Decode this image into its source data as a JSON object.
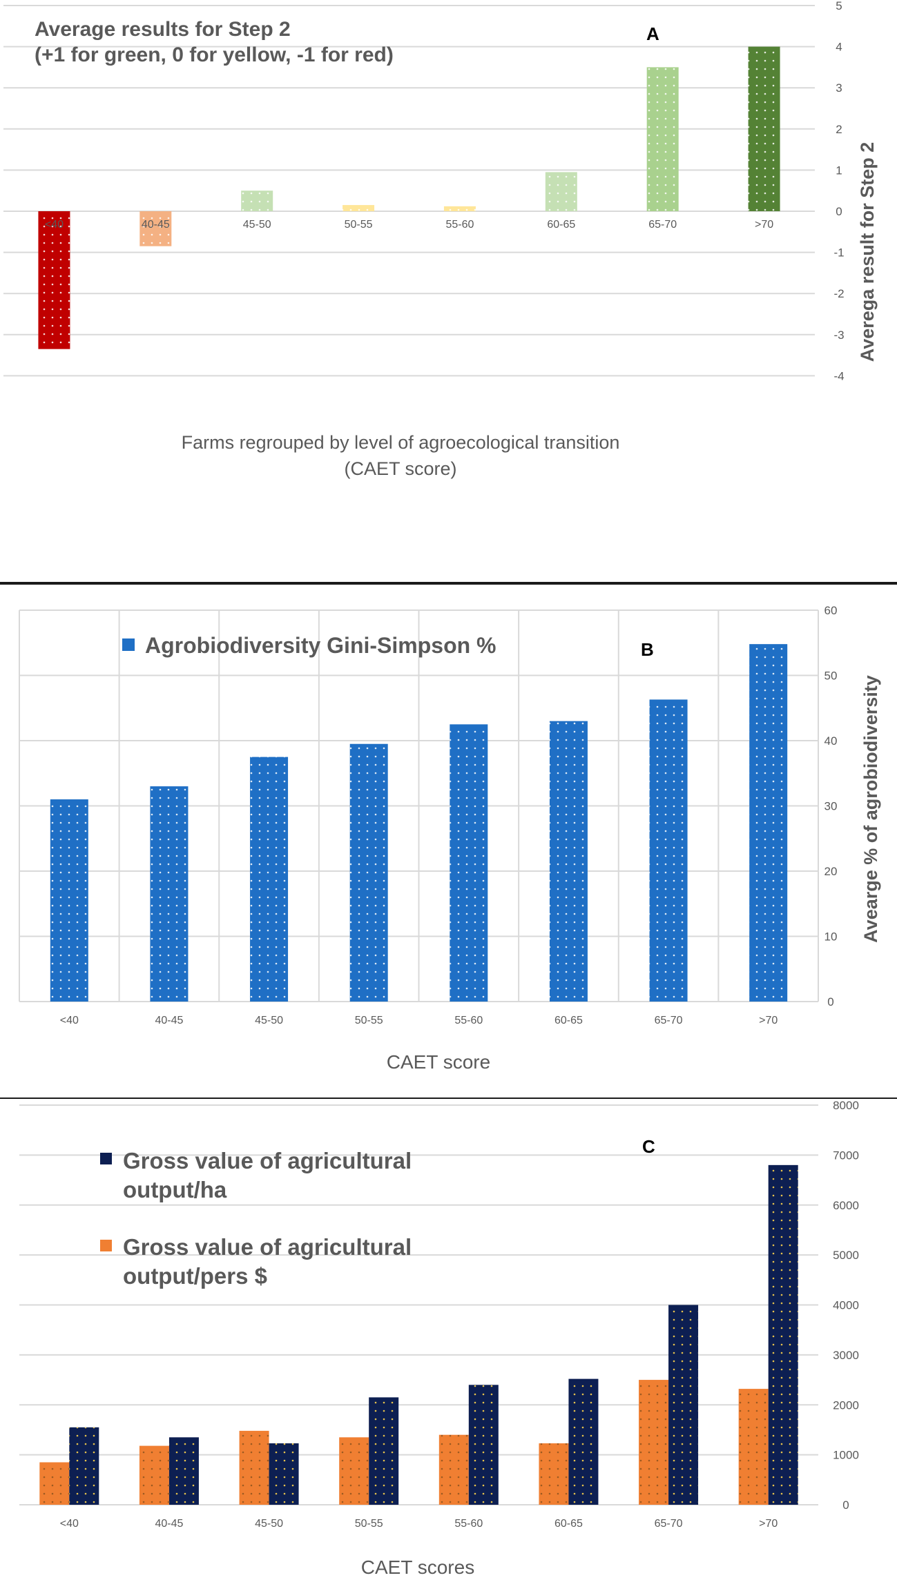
{
  "chart_data": [
    {
      "type": "bar",
      "panel": "A",
      "title_lines": [
        "Average results for Step 2",
        "(+1 for green, 0 for yellow, -1 for red)"
      ],
      "xlabel_lines": [
        "Farms regrouped by level of agroecological transition",
        "(CAET score)"
      ],
      "ylabel": "Averega result for Step 2",
      "categories": [
        "<40",
        "40-45",
        "45-50",
        "50-55",
        "55-60",
        "60-65",
        "65-70",
        ">70"
      ],
      "values": [
        -3.35,
        -0.85,
        0.5,
        0.15,
        0.12,
        0.95,
        3.5,
        4.0
      ],
      "colors": [
        "#c00000",
        "#f4b183",
        "#c5e0b4",
        "#ffe699",
        "#ffe699",
        "#c5e0b4",
        "#a9d18e",
        "#548235"
      ],
      "ylim": [
        -4,
        5
      ],
      "yticks": [
        "-4",
        "-3",
        "-2",
        "-1",
        "0",
        "1",
        "2",
        "3",
        "4",
        "5"
      ],
      "grid": true,
      "y_axis_side": "right"
    },
    {
      "type": "bar",
      "panel": "B",
      "legend": [
        "Agrobiodiversity Gini-Simpson %"
      ],
      "legend_position": "top-left",
      "xlabel": "CAET score",
      "ylabel": "Avearge % of agrobiodiversity",
      "categories": [
        "<40",
        "40-45",
        "45-50",
        "50-55",
        "55-60",
        "60-65",
        "65-70",
        ">70"
      ],
      "values": [
        31,
        33,
        37.5,
        39.5,
        42.5,
        43,
        46.3,
        54.8
      ],
      "color": "#1f6fc5",
      "ylim": [
        0,
        60
      ],
      "yticks": [
        "0",
        "10",
        "20",
        "30",
        "40",
        "50",
        "60"
      ],
      "grid": true,
      "y_axis_side": "right"
    },
    {
      "type": "bar",
      "panel": "C",
      "xlabel": "CAET scores",
      "categories": [
        "<40",
        "40-45",
        "45-50",
        "50-55",
        "55-60",
        "60-65",
        "65-70",
        ">70"
      ],
      "series": [
        {
          "name_lines": [
            "Gross value of agricultural",
            "output/pers $"
          ],
          "color": "#f07f32",
          "values": [
            850,
            1180,
            1480,
            1350,
            1400,
            1230,
            2500,
            2320
          ]
        },
        {
          "name_lines": [
            "Gross value of agricultural",
            "output/ha"
          ],
          "color": "#0d1f52",
          "values": [
            1550,
            1350,
            1230,
            2150,
            2400,
            2520,
            4000,
            6800
          ]
        }
      ],
      "legend_position": "top-left",
      "ylim": [
        0,
        8000
      ],
      "yticks": [
        "0",
        "1000",
        "2000",
        "3000",
        "4000",
        "5000",
        "6000",
        "7000",
        "8000"
      ],
      "grid": true,
      "y_axis_side": "right"
    }
  ]
}
